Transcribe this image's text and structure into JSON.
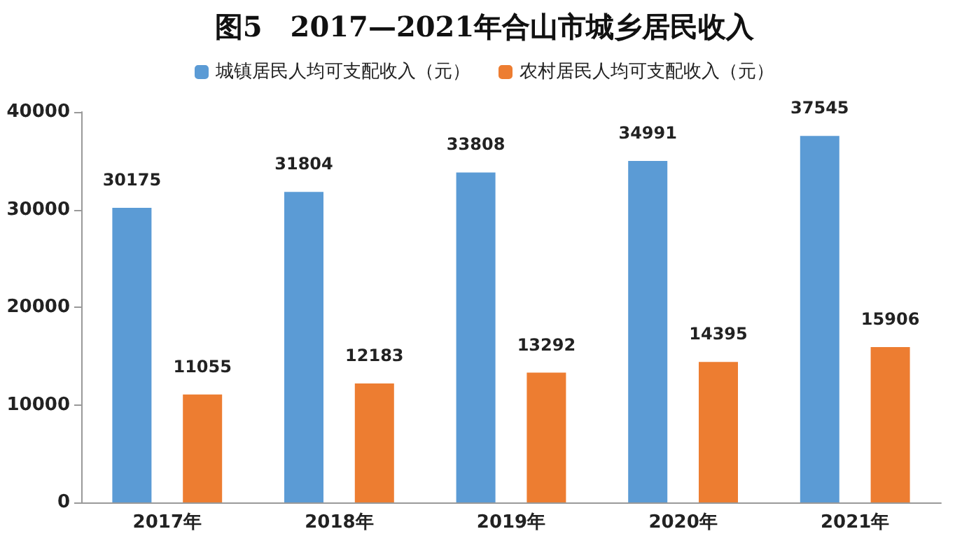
{
  "chart_data": {
    "type": "bar",
    "title": "图5　2017—2021年合山市城乡居民收入",
    "categories": [
      "2017年",
      "2018年",
      "2019年",
      "2020年",
      "2021年"
    ],
    "series": [
      {
        "name": "城镇居民人均可支配收入（元）",
        "color": "#5b9bd5",
        "values": [
          30175,
          31804,
          33808,
          34991,
          37545
        ]
      },
      {
        "name": "农村居民人均可支配收入（元）",
        "color": "#ed7d31",
        "values": [
          11055,
          12183,
          13292,
          14395,
          15906
        ]
      }
    ],
    "ylim": [
      0,
      40000
    ],
    "yticks": [
      0,
      10000,
      20000,
      30000,
      40000
    ],
    "grid": false,
    "legend": "top",
    "data_labels": true
  }
}
